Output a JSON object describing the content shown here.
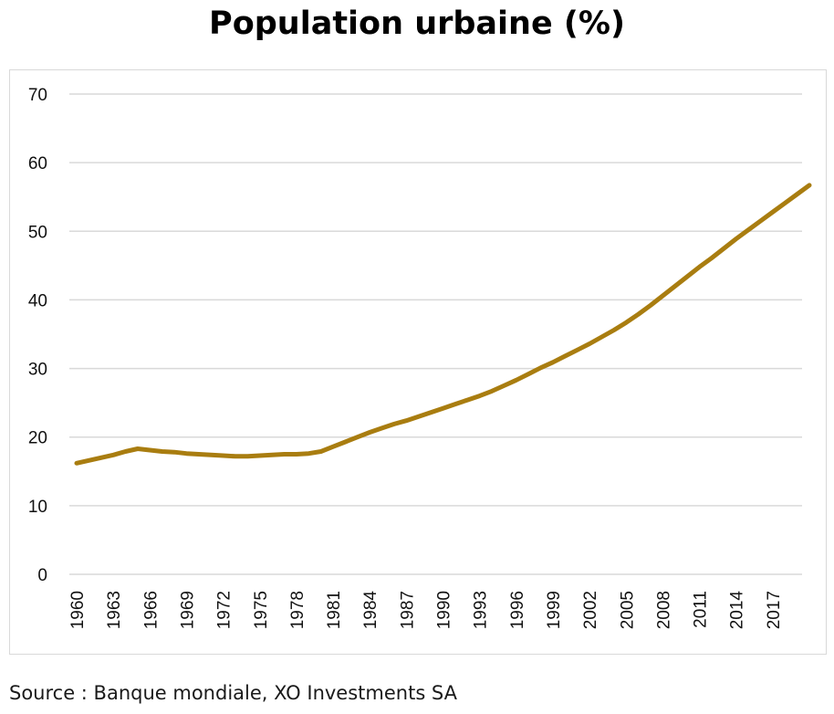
{
  "chart_data": {
    "type": "line",
    "title": "Population urbaine (%)",
    "xlabel": "",
    "ylabel": "",
    "ylim": [
      0,
      70
    ],
    "yticks": [
      0,
      10,
      20,
      30,
      40,
      50,
      60,
      70
    ],
    "xtick_labels": [
      "1960",
      "1963",
      "1966",
      "1969",
      "1972",
      "1975",
      "1978",
      "1981",
      "1984",
      "1987",
      "1990",
      "1993",
      "1996",
      "1999",
      "2002",
      "2005",
      "2008",
      "2011",
      "2014",
      "2017"
    ],
    "grid": true,
    "legend": "none",
    "series": [
      {
        "color": "#a97d10",
        "x": [
          1960,
          1961,
          1962,
          1963,
          1964,
          1965,
          1966,
          1967,
          1968,
          1969,
          1970,
          1971,
          1972,
          1973,
          1974,
          1975,
          1976,
          1977,
          1978,
          1979,
          1980,
          1981,
          1982,
          1983,
          1984,
          1985,
          1986,
          1987,
          1988,
          1989,
          1990,
          1991,
          1992,
          1993,
          1994,
          1995,
          1996,
          1997,
          1998,
          1999,
          2000,
          2001,
          2002,
          2003,
          2004,
          2005,
          2006,
          2007,
          2008,
          2009,
          2010,
          2011,
          2012,
          2013,
          2014,
          2015,
          2016,
          2017,
          2018,
          2019,
          2020
        ],
        "y": [
          16.2,
          16.6,
          17.0,
          17.4,
          17.9,
          18.3,
          18.1,
          17.9,
          17.8,
          17.6,
          17.5,
          17.4,
          17.3,
          17.2,
          17.2,
          17.3,
          17.4,
          17.5,
          17.5,
          17.6,
          17.9,
          18.6,
          19.3,
          20.0,
          20.7,
          21.3,
          21.9,
          22.4,
          23.0,
          23.6,
          24.2,
          24.8,
          25.4,
          26.0,
          26.7,
          27.5,
          28.3,
          29.2,
          30.1,
          30.9,
          31.8,
          32.7,
          33.6,
          34.6,
          35.6,
          36.7,
          37.9,
          39.2,
          40.6,
          42.0,
          43.4,
          44.8,
          46.1,
          47.5,
          48.9,
          50.2,
          51.5,
          52.8,
          54.1,
          55.4,
          56.7
        ]
      }
    ]
  },
  "source": "Source : Banque mondiale, XO Investments SA"
}
